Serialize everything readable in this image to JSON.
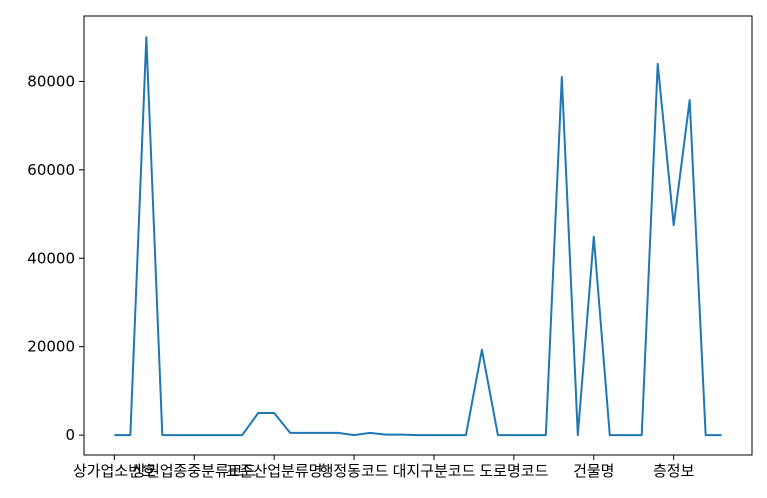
{
  "chart_data": {
    "type": "line",
    "categories": [
      "상가업소번호",
      null,
      null,
      null,
      null,
      "상권업종중분류코드",
      null,
      null,
      null,
      null,
      "표준산업분류명",
      null,
      null,
      null,
      null,
      "행정동코드",
      null,
      null,
      null,
      null,
      "대지구분코드",
      null,
      null,
      null,
      null,
      "도로명코드",
      null,
      null,
      null,
      null,
      "건물명",
      null,
      null,
      null,
      null,
      "층정보",
      null,
      null,
      null
    ],
    "values": [
      0,
      0,
      90000,
      0,
      0,
      0,
      0,
      0,
      0,
      5000,
      5000,
      500,
      500,
      500,
      500,
      0,
      500,
      100,
      100,
      0,
      0,
      0,
      0,
      19300,
      0,
      0,
      0,
      0,
      81000,
      0,
      44900,
      0,
      0,
      0,
      84000,
      47500,
      75800,
      0,
      0
    ],
    "color": "#1f77b4",
    "ylim": [
      -4500,
      94800
    ],
    "yticks": [
      0,
      20000,
      40000,
      60000,
      80000
    ],
    "grid": false
  }
}
